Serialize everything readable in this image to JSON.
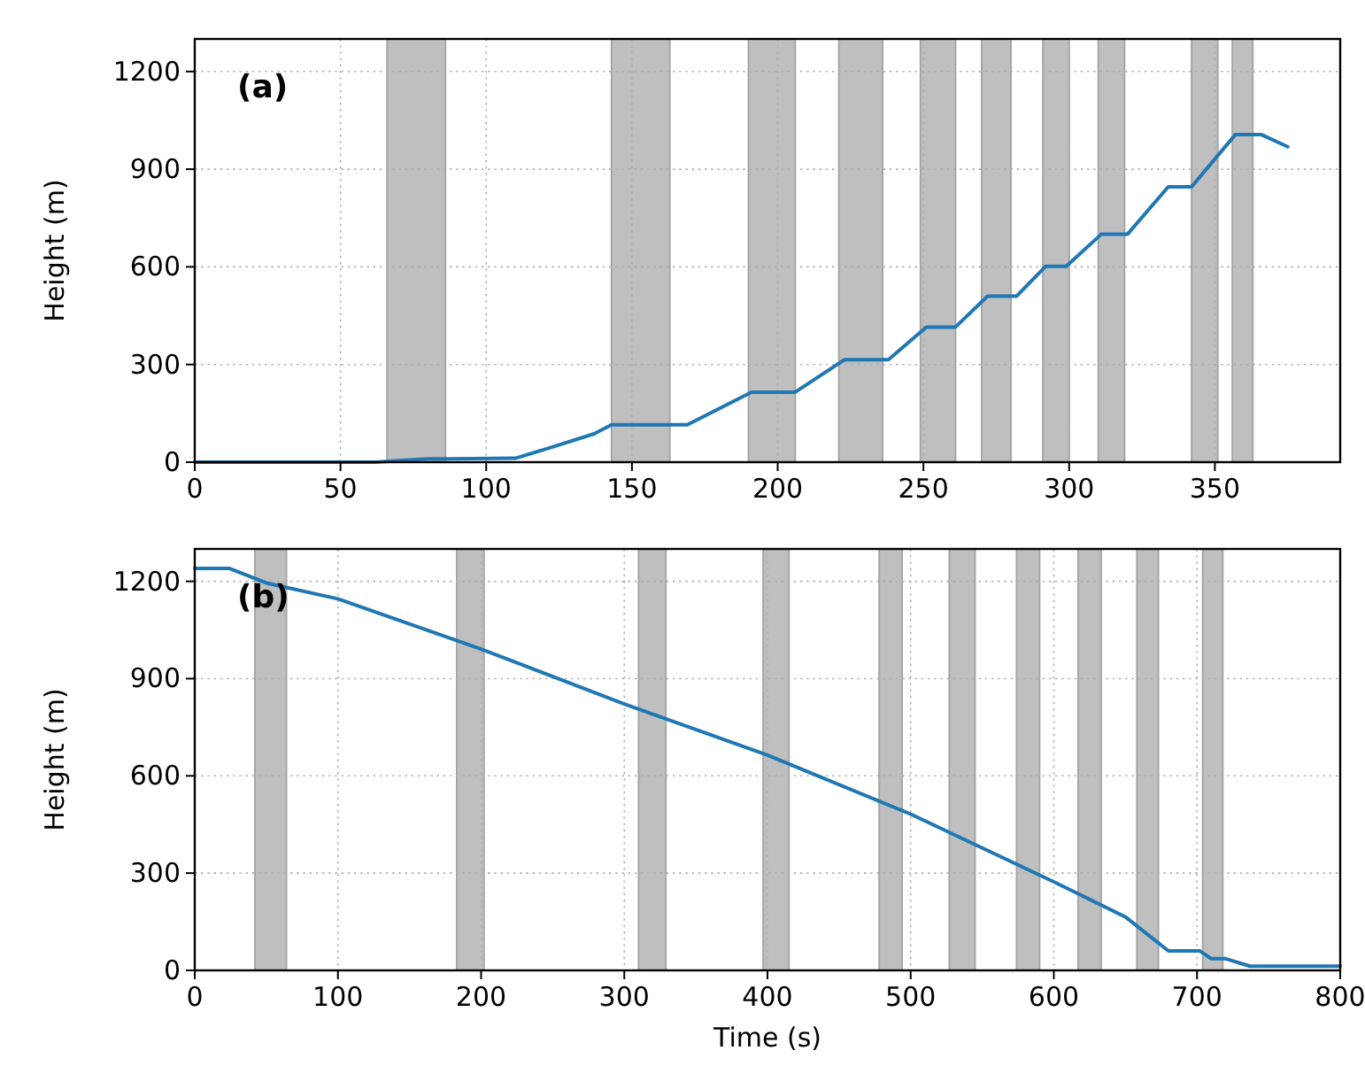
{
  "chart_data": [
    {
      "type": "line",
      "ylabel": "Height (m)",
      "annotations": [
        "(a)"
      ],
      "xlim": [
        0,
        393
      ],
      "ylim": [
        0,
        1300
      ],
      "xticks": [
        0,
        50,
        100,
        150,
        200,
        250,
        300,
        350
      ],
      "yticks": [
        0,
        300,
        600,
        900,
        1200
      ],
      "grid": true,
      "marker": "none",
      "line_style": "solid",
      "series": [
        {
          "color": "#1f77b4",
          "x": [
            0,
            62,
            70,
            80,
            110,
            121,
            137,
            143,
            169,
            191,
            206,
            223,
            238,
            251,
            261,
            272,
            282,
            292,
            299,
            311,
            320,
            334,
            342,
            357,
            366,
            375
          ],
          "values": [
            0,
            0,
            5,
            10,
            12,
            42,
            87,
            115,
            115,
            215,
            215,
            315,
            315,
            415,
            415,
            510,
            510,
            602,
            602,
            700,
            700,
            846,
            846,
            1006,
            1006,
            969
          ]
        }
      ],
      "bands": [
        {
          "axis": "x",
          "from": 66,
          "to": 86,
          "color": "#bfbfbf"
        },
        {
          "axis": "x",
          "from": 143,
          "to": 163,
          "color": "#bfbfbf"
        },
        {
          "axis": "x",
          "from": 190,
          "to": 206,
          "color": "#bfbfbf"
        },
        {
          "axis": "x",
          "from": 221,
          "to": 236,
          "color": "#bfbfbf"
        },
        {
          "axis": "x",
          "from": 249,
          "to": 261,
          "color": "#bfbfbf"
        },
        {
          "axis": "x",
          "from": 270,
          "to": 280,
          "color": "#bfbfbf"
        },
        {
          "axis": "x",
          "from": 291,
          "to": 300,
          "color": "#bfbfbf"
        },
        {
          "axis": "x",
          "from": 310,
          "to": 319,
          "color": "#bfbfbf"
        },
        {
          "axis": "x",
          "from": 342,
          "to": 351,
          "color": "#bfbfbf"
        },
        {
          "axis": "x",
          "from": 356,
          "to": 363,
          "color": "#bfbfbf"
        }
      ]
    },
    {
      "type": "line",
      "xlabel": "Time (s)",
      "ylabel": "Height (m)",
      "annotations": [
        "(b)"
      ],
      "xlim": [
        0,
        800
      ],
      "ylim": [
        0,
        1300
      ],
      "xticks": [
        0,
        100,
        200,
        300,
        400,
        500,
        600,
        700,
        800
      ],
      "yticks": [
        0,
        300,
        600,
        900,
        1200
      ],
      "grid": true,
      "marker": "none",
      "line_style": "solid",
      "series": [
        {
          "color": "#1f77b4",
          "x": [
            0,
            24,
            50,
            100,
            200,
            300,
            400,
            500,
            600,
            650,
            680,
            702,
            710,
            720,
            737,
            800
          ],
          "values": [
            1240,
            1240,
            1195,
            1146,
            991,
            822,
            664,
            482,
            273,
            165,
            60,
            60,
            36,
            36,
            13,
            13
          ]
        }
      ],
      "bands": [
        {
          "axis": "x",
          "from": 42,
          "to": 64,
          "color": "#bfbfbf"
        },
        {
          "axis": "x",
          "from": 183,
          "to": 202,
          "color": "#bfbfbf"
        },
        {
          "axis": "x",
          "from": 310,
          "to": 329,
          "color": "#bfbfbf"
        },
        {
          "axis": "x",
          "from": 397,
          "to": 415,
          "color": "#bfbfbf"
        },
        {
          "axis": "x",
          "from": 478,
          "to": 494,
          "color": "#bfbfbf"
        },
        {
          "axis": "x",
          "from": 527,
          "to": 545,
          "color": "#bfbfbf"
        },
        {
          "axis": "x",
          "from": 574,
          "to": 590,
          "color": "#bfbfbf"
        },
        {
          "axis": "x",
          "from": 617,
          "to": 633,
          "color": "#bfbfbf"
        },
        {
          "axis": "x",
          "from": 658,
          "to": 673,
          "color": "#bfbfbf"
        },
        {
          "axis": "x",
          "from": 704,
          "to": 718,
          "color": "#bfbfbf"
        }
      ]
    }
  ]
}
